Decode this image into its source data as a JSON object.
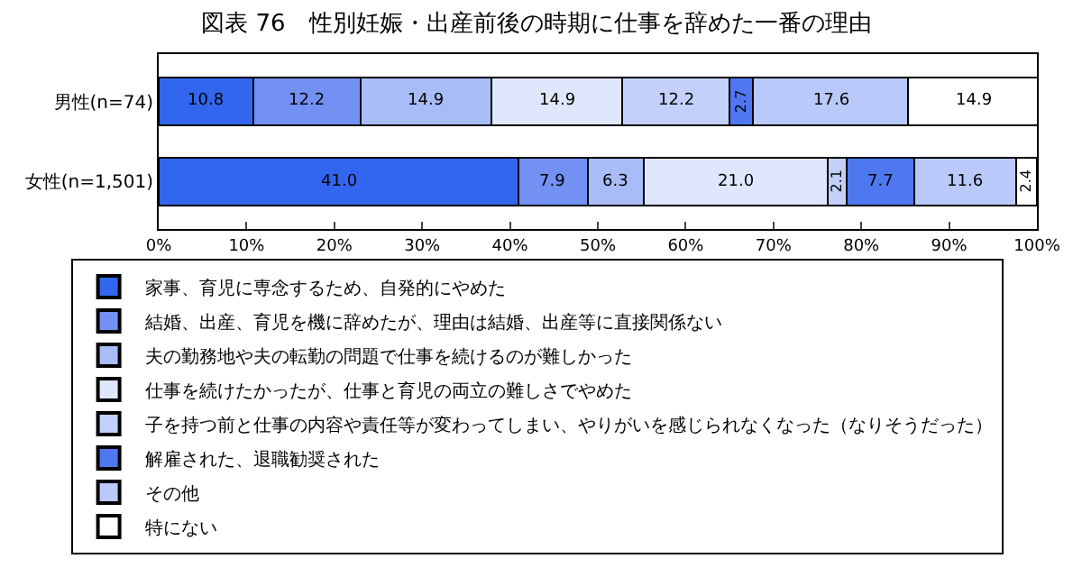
{
  "chart_data": {
    "type": "bar",
    "title": "図表 76　性別妊娠・出産前後の時期に仕事を辞めた一番の理由",
    "orientation": "horizontal",
    "stacked": true,
    "legend": "bottom",
    "grid": false,
    "categories": [
      "男性(n=74)",
      "女性(n=1,501)"
    ],
    "xlim": [
      0,
      100
    ],
    "xticks": [
      {
        "value": 0,
        "label": "0%"
      },
      {
        "value": 10,
        "label": "10%"
      },
      {
        "value": 20,
        "label": "20%"
      },
      {
        "value": 30,
        "label": "30%"
      },
      {
        "value": 40,
        "label": "40%"
      },
      {
        "value": 50,
        "label": "50%"
      },
      {
        "value": 60,
        "label": "60%"
      },
      {
        "value": 70,
        "label": "70%"
      },
      {
        "value": 80,
        "label": "80%"
      },
      {
        "value": 90,
        "label": "90%"
      },
      {
        "value": 100,
        "label": "100%"
      }
    ],
    "series": [
      {
        "name": "家事、育児に専念するため、自発的にやめた",
        "color": "#3366ee",
        "values": [
          10.8,
          41.0
        ],
        "value_labels": [
          "10.8",
          "41.0"
        ]
      },
      {
        "name": "結婚、出産、育児を機に辞めたが、理由は結婚、出産等に直接関係ない",
        "color": "#7391f2",
        "values": [
          12.2,
          7.9
        ],
        "value_labels": [
          "12.2",
          "7.9"
        ]
      },
      {
        "name": "夫の勤務地や夫の転勤の問題で仕事を続けるのが難しかった",
        "color": "#a8bcf7",
        "values": [
          14.9,
          6.3
        ],
        "value_labels": [
          "14.9",
          "6.3"
        ]
      },
      {
        "name": "仕事を続けたかったが、仕事と育児の両立の難しさでやめた",
        "color": "#dfe7fd",
        "values": [
          14.9,
          21.0
        ],
        "value_labels": [
          "14.9",
          "21.0"
        ]
      },
      {
        "name": "子を持つ前と仕事の内容や責任等が変わってしまい、やりがいを感じられなくなった（なりそうだった）",
        "color": "#c3d0f9",
        "values": [
          12.2,
          2.1
        ],
        "value_labels": [
          "12.2",
          "2.1"
        ]
      },
      {
        "name": "解雇された、退職勧奨された",
        "color": "#4f78f0",
        "values": [
          2.7,
          7.7
        ],
        "value_labels": [
          "2.7",
          "7.7"
        ]
      },
      {
        "name": "その他",
        "color": "#b9c9fa",
        "values": [
          17.6,
          11.6
        ],
        "value_labels": [
          "17.6",
          "11.6"
        ]
      },
      {
        "name": "特にない",
        "color": "#ffffff",
        "values": [
          14.9,
          2.4
        ],
        "value_labels": [
          "14.9",
          "2.4"
        ]
      }
    ]
  }
}
